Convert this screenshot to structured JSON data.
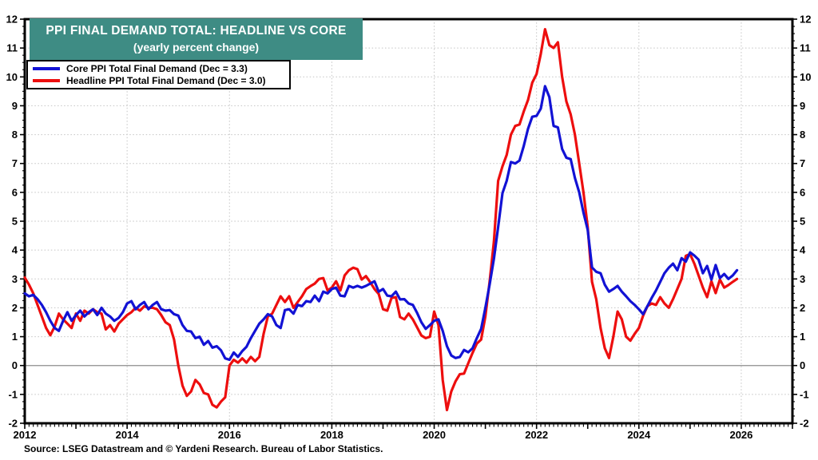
{
  "header": {
    "title": "PPI FINAL DEMAND TOTAL: HEADLINE VS CORE",
    "subtitle": "(yearly percent change)",
    "background_color": "#3E8C84",
    "text_color": "#ffffff"
  },
  "legend": {
    "items": [
      {
        "label": "Core PPI Total Final Demand (Dec = 3.3)",
        "color": "#1212d4"
      },
      {
        "label": "Headline PPI Total Final Demand (Dec = 3.0)",
        "color": "#ed0e0e"
      }
    ]
  },
  "source": "Source: LSEG Datastream and © Yardeni Research. Bureau of Labor Statistics.",
  "chart_data": {
    "type": "line",
    "title": "PPI FINAL DEMAND TOTAL: HEADLINE VS CORE",
    "subtitle": "(yearly percent change)",
    "x": {
      "start_year": 2012,
      "frequency": "monthly",
      "axis_min": 2012,
      "axis_max": 2027,
      "tick_label_years": [
        2012,
        2014,
        2016,
        2018,
        2020,
        2022,
        2024,
        2026
      ],
      "tick_labels": [
        "2012",
        "2014",
        "2016",
        "2018",
        "2020",
        "2022",
        "2024",
        "2026"
      ],
      "gridline_years": [
        2014,
        2016,
        2018,
        2020,
        2022,
        2024,
        2026
      ]
    },
    "y": {
      "min": -2,
      "max": 12,
      "major_step": 1,
      "minor_step": 0.25,
      "zero_line": true,
      "tick_labels": [
        "-2",
        "-1",
        "0",
        "1",
        "2",
        "3",
        "4",
        "5",
        "6",
        "7",
        "8",
        "9",
        "10",
        "11",
        "12"
      ],
      "labels_on_both_sides": true,
      "grid_color": "#c4c4c4",
      "zero_line_color": "#8c8c8c"
    },
    "series": [
      {
        "name": "Core PPI Total Final Demand (Dec = 3.3)",
        "short_name": "core",
        "color": "#1212d4",
        "dec_value": 3.3,
        "values": [
          2.5,
          2.4,
          2.45,
          2.3,
          2.1,
          1.85,
          1.55,
          1.3,
          1.2,
          1.55,
          1.85,
          1.55,
          1.75,
          1.9,
          1.7,
          1.85,
          1.95,
          1.75,
          2.0,
          1.8,
          1.7,
          1.55,
          1.65,
          1.85,
          2.15,
          2.23,
          1.95,
          2.1,
          2.2,
          1.95,
          2.1,
          2.2,
          1.95,
          1.9,
          1.92,
          1.78,
          1.73,
          1.4,
          1.2,
          1.18,
          0.95,
          1.0,
          0.72,
          0.85,
          0.62,
          0.67,
          0.53,
          0.25,
          0.2,
          0.45,
          0.3,
          0.5,
          0.65,
          0.95,
          1.2,
          1.45,
          1.6,
          1.78,
          1.7,
          1.4,
          1.3,
          1.92,
          1.95,
          1.8,
          2.1,
          2.06,
          2.23,
          2.2,
          2.42,
          2.23,
          2.56,
          2.5,
          2.65,
          2.7,
          2.42,
          2.4,
          2.76,
          2.7,
          2.76,
          2.7,
          2.76,
          2.84,
          2.92,
          2.56,
          2.65,
          2.42,
          2.4,
          2.56,
          2.29,
          2.3,
          2.15,
          2.1,
          1.82,
          1.5,
          1.27,
          1.4,
          1.55,
          1.6,
          1.2,
          0.67,
          0.35,
          0.26,
          0.3,
          0.54,
          0.46,
          0.6,
          0.95,
          1.27,
          2.0,
          2.8,
          3.7,
          4.8,
          5.97,
          6.4,
          7.05,
          7.0,
          7.1,
          7.6,
          8.2,
          8.62,
          8.65,
          8.9,
          9.68,
          9.3,
          8.3,
          8.25,
          7.5,
          7.2,
          7.15,
          6.5,
          6.0,
          5.3,
          4.7,
          3.4,
          3.25,
          3.2,
          2.8,
          2.56,
          2.65,
          2.76,
          2.56,
          2.4,
          2.23,
          2.1,
          1.95,
          1.78,
          2.06,
          2.34,
          2.6,
          2.9,
          3.2,
          3.39,
          3.53,
          3.3,
          3.72,
          3.6,
          3.92,
          3.81,
          3.67,
          3.2,
          3.45,
          2.98,
          3.48,
          3.03,
          3.17,
          3.0,
          3.12,
          3.3
        ]
      },
      {
        "name": "Headline PPI Total Final Demand (Dec = 3.0)",
        "short_name": "headline",
        "color": "#ed0e0e",
        "dec_value": 3.0,
        "values": [
          3.05,
          2.8,
          2.5,
          2.1,
          1.7,
          1.3,
          1.05,
          1.35,
          1.8,
          1.6,
          1.45,
          1.3,
          1.8,
          1.55,
          1.9,
          1.8,
          1.95,
          1.85,
          1.8,
          1.25,
          1.4,
          1.18,
          1.45,
          1.6,
          1.75,
          1.85,
          2.0,
          1.9,
          2.05,
          2.0,
          2.0,
          1.95,
          1.75,
          1.5,
          1.4,
          0.9,
          0.0,
          -0.7,
          -1.05,
          -0.9,
          -0.5,
          -0.65,
          -0.95,
          -1.0,
          -1.36,
          -1.45,
          -1.25,
          -1.1,
          0.0,
          0.2,
          0.1,
          0.25,
          0.1,
          0.3,
          0.15,
          0.3,
          1.1,
          1.7,
          1.8,
          2.1,
          2.4,
          2.2,
          2.4,
          2.0,
          2.2,
          2.4,
          2.65,
          2.75,
          2.84,
          3.0,
          3.03,
          2.6,
          2.7,
          2.92,
          2.6,
          3.12,
          3.3,
          3.39,
          3.34,
          2.98,
          3.1,
          2.89,
          2.65,
          2.48,
          1.95,
          1.9,
          2.34,
          2.37,
          1.68,
          1.6,
          1.8,
          1.6,
          1.32,
          1.04,
          0.95,
          1.0,
          1.87,
          1.4,
          -0.5,
          -1.54,
          -0.9,
          -0.55,
          -0.3,
          -0.28,
          0.08,
          0.44,
          0.76,
          0.9,
          1.7,
          2.9,
          4.3,
          6.4,
          6.9,
          7.3,
          8.0,
          8.3,
          8.35,
          8.8,
          9.2,
          9.8,
          10.1,
          10.8,
          11.65,
          11.1,
          11.0,
          11.2,
          10.0,
          9.15,
          8.7,
          8.0,
          7.0,
          6.0,
          4.8,
          2.9,
          2.3,
          1.3,
          0.6,
          0.26,
          1.0,
          1.87,
          1.6,
          1.0,
          0.86,
          1.1,
          1.3,
          1.73,
          2.06,
          2.15,
          2.1,
          2.37,
          2.15,
          2.0,
          2.3,
          2.65,
          3.0,
          3.8,
          3.86,
          3.53,
          3.12,
          2.7,
          2.37,
          2.92,
          2.51,
          2.98,
          2.7,
          2.79,
          2.9,
          3.0
        ]
      }
    ]
  }
}
